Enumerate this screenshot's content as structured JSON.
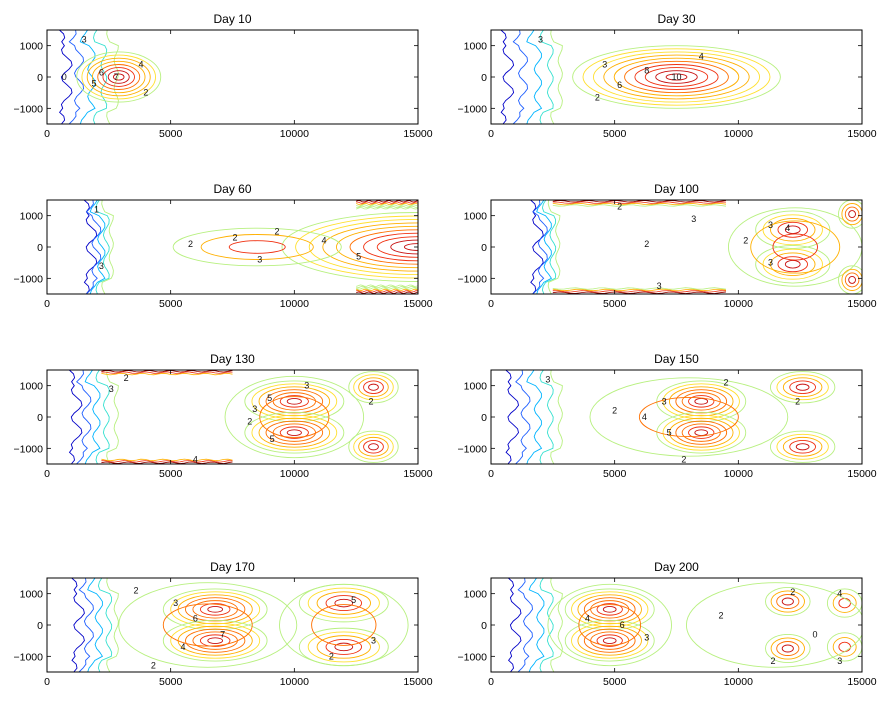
{
  "chart_data": [
    {
      "type": "contour",
      "title": "Day 10",
      "xlim": [
        0,
        15000
      ],
      "ylim": [
        -1500,
        1500
      ],
      "xticks": [
        0,
        5000,
        10000,
        15000
      ],
      "yticks": [
        -1000,
        0,
        1000
      ],
      "xtick_labels": [
        "0",
        "5000",
        "10000",
        "15000"
      ],
      "ytick_labels": [
        "−1000",
        "0",
        "1000"
      ],
      "wall_x": [
        800,
        1300,
        1800,
        2300,
        2800
      ],
      "blobs": [
        {
          "cx": 2900,
          "cy": 0,
          "rx": 1700,
          "ry": 800,
          "peak": 8,
          "shape": "ellipse"
        }
      ],
      "bands": [],
      "labels": [
        {
          "x": 2800,
          "y": 0,
          "text": "7"
        },
        {
          "x": 2200,
          "y": 150,
          "text": "6"
        },
        {
          "x": 1900,
          "y": -200,
          "text": "5"
        },
        {
          "x": 3800,
          "y": 400,
          "text": "4"
        },
        {
          "x": 4000,
          "y": -500,
          "text": "2"
        },
        {
          "x": 1500,
          "y": 1200,
          "text": "3"
        },
        {
          "x": 700,
          "y": 0,
          "text": "0"
        }
      ]
    },
    {
      "type": "contour",
      "title": "Day 30",
      "xlim": [
        0,
        15000
      ],
      "ylim": [
        -1500,
        1500
      ],
      "xticks": [
        0,
        5000,
        10000,
        15000
      ],
      "yticks": [
        -1000,
        0,
        1000
      ],
      "xtick_labels": [
        "0",
        "5000",
        "10000",
        "15000"
      ],
      "ytick_labels": [
        "−1000",
        "0",
        "1000"
      ],
      "wall_x": [
        700,
        1300,
        1900,
        2400,
        2800
      ],
      "blobs": [
        {
          "cx": 7500,
          "cy": 0,
          "rx": 4200,
          "ry": 1000,
          "peak": 10,
          "shape": "ellipse"
        }
      ],
      "bands": [],
      "labels": [
        {
          "x": 7500,
          "y": 0,
          "text": "10"
        },
        {
          "x": 6300,
          "y": 200,
          "text": "8"
        },
        {
          "x": 5200,
          "y": -250,
          "text": "6"
        },
        {
          "x": 4600,
          "y": 400,
          "text": "3"
        },
        {
          "x": 4300,
          "y": -650,
          "text": "2"
        },
        {
          "x": 8500,
          "y": 650,
          "text": "4"
        },
        {
          "x": 2000,
          "y": 1200,
          "text": "3"
        }
      ]
    },
    {
      "type": "contour",
      "title": "Day 60",
      "xlim": [
        0,
        15000
      ],
      "ylim": [
        -1500,
        1500
      ],
      "xticks": [
        0,
        5000,
        10000,
        15000
      ],
      "yticks": [
        -1000,
        0,
        1000
      ],
      "xtick_labels": [
        "0",
        "5000",
        "10000",
        "15000"
      ],
      "ytick_labels": [
        "−1000",
        "0",
        "1000"
      ],
      "wall_x": [
        1800,
        2000,
        2200,
        2400,
        2600
      ],
      "blobs": [
        {
          "cx": 15000,
          "cy": 0,
          "rx": 5500,
          "ry": 1100,
          "peak": 10,
          "shape": "ellipse"
        },
        {
          "cx": 8500,
          "cy": 0,
          "rx": 3400,
          "ry": 600,
          "peak": 3,
          "shape": "ellipse"
        }
      ],
      "bands": [
        {
          "x0": 12500,
          "x1": 15000,
          "edge": "top",
          "levels": 6
        },
        {
          "x0": 12500,
          "x1": 15000,
          "edge": "bottom",
          "levels": 6
        }
      ],
      "labels": [
        {
          "x": 5800,
          "y": 100,
          "text": "2"
        },
        {
          "x": 7600,
          "y": 300,
          "text": "2"
        },
        {
          "x": 9300,
          "y": 500,
          "text": "2"
        },
        {
          "x": 8600,
          "y": -400,
          "text": "3"
        },
        {
          "x": 11200,
          "y": 200,
          "text": "4"
        },
        {
          "x": 12600,
          "y": -300,
          "text": "5"
        },
        {
          "x": 2000,
          "y": 1200,
          "text": "1"
        },
        {
          "x": 2200,
          "y": -600,
          "text": "3"
        }
      ]
    },
    {
      "type": "contour",
      "title": "Day 100",
      "xlim": [
        0,
        15000
      ],
      "ylim": [
        -1500,
        1500
      ],
      "xticks": [
        0,
        5000,
        10000,
        15000
      ],
      "yticks": [
        -1000,
        0,
        1000
      ],
      "xtick_labels": [
        "0",
        "5000",
        "10000",
        "15000"
      ],
      "ytick_labels": [
        "−1000",
        "0",
        "1000"
      ],
      "wall_x": [
        1900,
        2100,
        2300,
        2500,
        2700
      ],
      "blobs": [
        {
          "cx": 12200,
          "cy": 550,
          "rx": 1500,
          "ry": 600,
          "peak": 5,
          "shape": "ellipse"
        },
        {
          "cx": 12200,
          "cy": -550,
          "rx": 1500,
          "ry": 600,
          "peak": 5,
          "shape": "ellipse"
        },
        {
          "cx": 12300,
          "cy": 0,
          "rx": 2700,
          "ry": 1250,
          "peak": 3,
          "shape": "ellipse"
        },
        {
          "cx": 14600,
          "cy": 1050,
          "rx": 550,
          "ry": 450,
          "peak": 4,
          "shape": "ellipse"
        },
        {
          "cx": 14600,
          "cy": -1050,
          "rx": 550,
          "ry": 450,
          "peak": 4,
          "shape": "ellipse"
        }
      ],
      "bands": [
        {
          "x0": 2500,
          "x1": 9500,
          "edge": "top",
          "levels": 4
        },
        {
          "x0": 2500,
          "x1": 9500,
          "edge": "bottom",
          "levels": 4
        }
      ],
      "labels": [
        {
          "x": 8200,
          "y": 900,
          "text": "3"
        },
        {
          "x": 11300,
          "y": 700,
          "text": "3"
        },
        {
          "x": 12000,
          "y": 600,
          "text": "4"
        },
        {
          "x": 11300,
          "y": -500,
          "text": "3"
        },
        {
          "x": 10300,
          "y": 200,
          "text": "2"
        },
        {
          "x": 6300,
          "y": 100,
          "text": "2"
        },
        {
          "x": 6800,
          "y": -1250,
          "text": "3"
        },
        {
          "x": 5200,
          "y": 1300,
          "text": "2"
        }
      ]
    },
    {
      "type": "contour",
      "title": "Day 130",
      "xlim": [
        0,
        15000
      ],
      "ylim": [
        -1500,
        1500
      ],
      "xticks": [
        0,
        5000,
        10000,
        15000
      ],
      "yticks": [
        -1000,
        0,
        1000
      ],
      "xtick_labels": [
        "0",
        "5000",
        "10000",
        "15000"
      ],
      "ytick_labels": [
        "−1000",
        "0",
        "1000"
      ],
      "wall_x": [
        1200,
        1600,
        2000,
        2400,
        2800
      ],
      "blobs": [
        {
          "cx": 10000,
          "cy": 500,
          "rx": 2000,
          "ry": 650,
          "peak": 7,
          "shape": "ellipse"
        },
        {
          "cx": 10000,
          "cy": -500,
          "rx": 2000,
          "ry": 650,
          "peak": 7,
          "shape": "ellipse"
        },
        {
          "cx": 10000,
          "cy": 0,
          "rx": 2800,
          "ry": 1300,
          "peak": 2,
          "shape": "ellipse"
        },
        {
          "cx": 13200,
          "cy": 950,
          "rx": 1000,
          "ry": 500,
          "peak": 5,
          "shape": "ellipse"
        },
        {
          "cx": 13200,
          "cy": -950,
          "rx": 1000,
          "ry": 500,
          "peak": 5,
          "shape": "ellipse"
        }
      ],
      "bands": [
        {
          "x0": 2200,
          "x1": 7500,
          "edge": "top",
          "levels": 3
        },
        {
          "x0": 2200,
          "x1": 7500,
          "edge": "bottom",
          "levels": 3
        }
      ],
      "labels": [
        {
          "x": 10500,
          "y": 1000,
          "text": "3"
        },
        {
          "x": 9000,
          "y": 600,
          "text": "5"
        },
        {
          "x": 8400,
          "y": 250,
          "text": "3"
        },
        {
          "x": 8200,
          "y": -150,
          "text": "2"
        },
        {
          "x": 9100,
          "y": -700,
          "text": "5"
        },
        {
          "x": 13100,
          "y": 500,
          "text": "2"
        },
        {
          "x": 3200,
          "y": 1250,
          "text": "2"
        },
        {
          "x": 6000,
          "y": -1350,
          "text": "4"
        },
        {
          "x": 2600,
          "y": 900,
          "text": "3"
        }
      ]
    },
    {
      "type": "contour",
      "title": "Day 150",
      "xlim": [
        0,
        15000
      ],
      "ylim": [
        -1500,
        1500
      ],
      "xticks": [
        0,
        5000,
        10000,
        15000
      ],
      "yticks": [
        -1000,
        0,
        1000
      ],
      "xtick_labels": [
        "0",
        "5000",
        "10000",
        "15000"
      ],
      "ytick_labels": [
        "−1000",
        "0",
        "1000"
      ],
      "wall_x": [
        900,
        1400,
        1900,
        2400,
        2800
      ],
      "blobs": [
        {
          "cx": 8500,
          "cy": 500,
          "rx": 1800,
          "ry": 650,
          "peak": 7,
          "shape": "ellipse"
        },
        {
          "cx": 8500,
          "cy": -500,
          "rx": 1800,
          "ry": 650,
          "peak": 7,
          "shape": "ellipse"
        },
        {
          "cx": 8000,
          "cy": 0,
          "rx": 4000,
          "ry": 1250,
          "peak": 2,
          "shape": "ellipse"
        },
        {
          "cx": 12600,
          "cy": 950,
          "rx": 1300,
          "ry": 500,
          "peak": 5,
          "shape": "ellipse"
        },
        {
          "cx": 12600,
          "cy": -950,
          "rx": 1300,
          "ry": 500,
          "peak": 5,
          "shape": "ellipse"
        }
      ],
      "bands": [],
      "labels": [
        {
          "x": 6200,
          "y": 0,
          "text": "4"
        },
        {
          "x": 7000,
          "y": 500,
          "text": "3"
        },
        {
          "x": 7200,
          "y": -500,
          "text": "5"
        },
        {
          "x": 5000,
          "y": 200,
          "text": "2"
        },
        {
          "x": 9500,
          "y": 1100,
          "text": "2"
        },
        {
          "x": 12400,
          "y": 500,
          "text": "2"
        },
        {
          "x": 7800,
          "y": -1350,
          "text": "2"
        },
        {
          "x": 2300,
          "y": 1200,
          "text": "3"
        }
      ]
    },
    {
      "type": "contour",
      "title": "Day 170",
      "xlim": [
        0,
        15000
      ],
      "ylim": [
        -1500,
        1500
      ],
      "xticks": [
        0,
        5000,
        10000,
        15000
      ],
      "yticks": [
        -1000,
        0,
        1000
      ],
      "xtick_labels": [
        "0",
        "5000",
        "10000",
        "15000"
      ],
      "ytick_labels": [
        "−1000",
        "0",
        "1000"
      ],
      "wall_x": [
        1300,
        1700,
        2100,
        2500,
        2800
      ],
      "blobs": [
        {
          "cx": 6800,
          "cy": 500,
          "rx": 2100,
          "ry": 650,
          "peak": 7,
          "shape": "ellipse"
        },
        {
          "cx": 6800,
          "cy": -500,
          "rx": 2100,
          "ry": 650,
          "peak": 7,
          "shape": "ellipse"
        },
        {
          "cx": 6500,
          "cy": 0,
          "rx": 3600,
          "ry": 1350,
          "peak": 2,
          "shape": "ellipse"
        },
        {
          "cx": 12000,
          "cy": 700,
          "rx": 1800,
          "ry": 600,
          "peak": 5,
          "shape": "ellipse"
        },
        {
          "cx": 12000,
          "cy": -700,
          "rx": 1800,
          "ry": 600,
          "peak": 5,
          "shape": "ellipse"
        },
        {
          "cx": 12000,
          "cy": 0,
          "rx": 2600,
          "ry": 1300,
          "peak": 2,
          "shape": "ellipse"
        }
      ],
      "bands": [],
      "labels": [
        {
          "x": 5200,
          "y": 700,
          "text": "3"
        },
        {
          "x": 6000,
          "y": 200,
          "text": "6"
        },
        {
          "x": 7100,
          "y": -300,
          "text": "7"
        },
        {
          "x": 5500,
          "y": -700,
          "text": "4"
        },
        {
          "x": 3600,
          "y": 1100,
          "text": "2"
        },
        {
          "x": 12400,
          "y": 800,
          "text": "5"
        },
        {
          "x": 13200,
          "y": -500,
          "text": "3"
        },
        {
          "x": 11500,
          "y": -1000,
          "text": "2"
        },
        {
          "x": 4300,
          "y": -1300,
          "text": "2"
        }
      ]
    },
    {
      "type": "contour",
      "title": "Day 200",
      "xlim": [
        0,
        15000
      ],
      "ylim": [
        -1500,
        1500
      ],
      "xticks": [
        0,
        5000,
        10000,
        15000
      ],
      "yticks": [
        -1000,
        0,
        1000
      ],
      "xtick_labels": [
        "0",
        "5000",
        "10000",
        "15000"
      ],
      "ytick_labels": [
        "−1000",
        "0",
        "1000"
      ],
      "wall_x": [
        1000,
        1500,
        2000,
        2400,
        2800
      ],
      "blobs": [
        {
          "cx": 4800,
          "cy": 500,
          "rx": 1800,
          "ry": 650,
          "peak": 7,
          "shape": "ellipse"
        },
        {
          "cx": 4800,
          "cy": -500,
          "rx": 1800,
          "ry": 650,
          "peak": 7,
          "shape": "ellipse"
        },
        {
          "cx": 4800,
          "cy": 0,
          "rx": 2500,
          "ry": 1300,
          "peak": 2,
          "shape": "ellipse"
        },
        {
          "cx": 12000,
          "cy": 750,
          "rx": 900,
          "ry": 450,
          "peak": 4,
          "shape": "ellipse"
        },
        {
          "cx": 12000,
          "cy": -750,
          "rx": 900,
          "ry": 450,
          "peak": 4,
          "shape": "ellipse"
        },
        {
          "cx": 14300,
          "cy": 700,
          "rx": 700,
          "ry": 450,
          "peak": 3,
          "shape": "ellipse"
        },
        {
          "cx": 14300,
          "cy": -700,
          "rx": 700,
          "ry": 450,
          "peak": 3,
          "shape": "ellipse"
        },
        {
          "cx": 11500,
          "cy": 0,
          "rx": 3600,
          "ry": 1350,
          "peak": 1,
          "shape": "ellipse"
        }
      ],
      "bands": [],
      "labels": [
        {
          "x": 3900,
          "y": 200,
          "text": "4"
        },
        {
          "x": 5300,
          "y": 0,
          "text": "6"
        },
        {
          "x": 6300,
          "y": -400,
          "text": "3"
        },
        {
          "x": 9300,
          "y": 300,
          "text": "2"
        },
        {
          "x": 12200,
          "y": 1050,
          "text": "2"
        },
        {
          "x": 13100,
          "y": -300,
          "text": "0"
        },
        {
          "x": 11400,
          "y": -1150,
          "text": "2"
        },
        {
          "x": 14100,
          "y": 1000,
          "text": "4"
        },
        {
          "x": 14100,
          "y": -1150,
          "text": "3"
        }
      ]
    }
  ],
  "palette": [
    "#0000c8",
    "#1f5fff",
    "#00b4ff",
    "#35e0d0",
    "#b8f080",
    "#ffe030",
    "#ffb000",
    "#ff7000",
    "#f03010",
    "#c81010",
    "#900000"
  ]
}
